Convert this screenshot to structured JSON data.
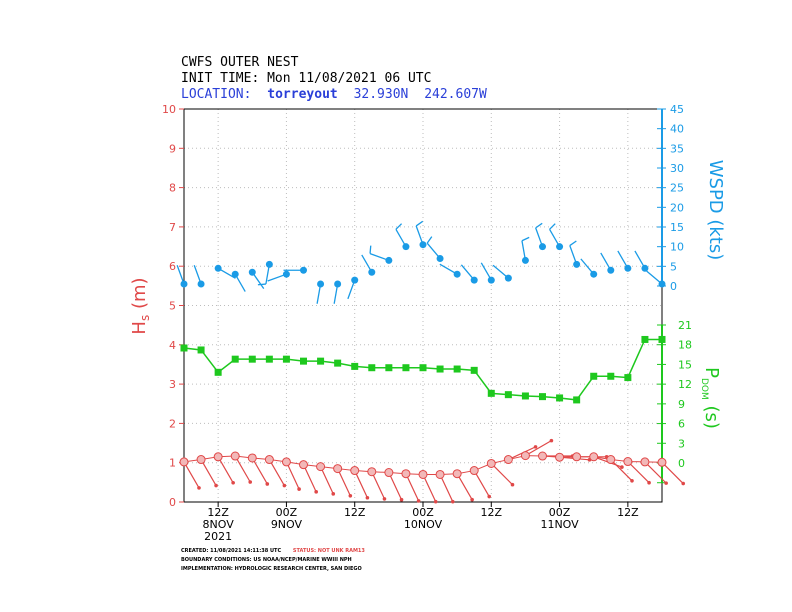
{
  "title_lines": [
    "CWFS OUTER NEST",
    "INIT TIME: Mon 11/08/2021 06 UTC"
  ],
  "location": {
    "label": "LOCATION:",
    "station": "torreyout",
    "lat": "32.930N",
    "lon": "242.607W"
  },
  "footer": {
    "created": "CREATED: 11/08/2021 14:11:38 UTC",
    "status": "STATUS: NOT UNK RAM13",
    "boundary": "BOUNDARY CONDITIONS: US NOAA/NCEP/MARINE WWIII NPH",
    "implementation": "IMPLEMENTATION: HYDROLOGIC RESEARCH CENTER, SAN DIEGO"
  },
  "colors": {
    "hs": "#e04848",
    "wspd": "#1a9be6",
    "pdom": "#1ec81e",
    "loc": "#2a3fd8"
  },
  "chart_data": {
    "type": "line",
    "x_unit": "hours from 2021-11-08 06 UTC",
    "x_range": [
      0,
      84
    ],
    "x_ticks": [
      {
        "x": 6,
        "label": "12Z",
        "date": "8NOV",
        "year": "2021"
      },
      {
        "x": 18,
        "label": "00Z",
        "date": "9NOV",
        "year": ""
      },
      {
        "x": 30,
        "label": "12Z",
        "date": "",
        "year": ""
      },
      {
        "x": 42,
        "label": "00Z",
        "date": "10NOV",
        "year": ""
      },
      {
        "x": 54,
        "label": "12Z",
        "date": "",
        "year": ""
      },
      {
        "x": 66,
        "label": "00Z",
        "date": "11NOV",
        "year": ""
      },
      {
        "x": 78,
        "label": "12Z",
        "date": "",
        "year": ""
      }
    ],
    "hs": {
      "ylabel_main": "H",
      "ylabel_sub": "s",
      "ylabel_unit": " (m)",
      "ylim": [
        0,
        10
      ],
      "ticks": [
        "0",
        "1",
        "2",
        "3",
        "4",
        "5",
        "6",
        "7",
        "8",
        "9",
        "10"
      ],
      "x": [
        0,
        3,
        6,
        9,
        12,
        15,
        18,
        21,
        24,
        27,
        30,
        33,
        36,
        39,
        42,
        45,
        48,
        51,
        54,
        57,
        60,
        63,
        66,
        69,
        72,
        75,
        78,
        81,
        84
      ],
      "values": [
        1.02,
        1.08,
        1.15,
        1.17,
        1.12,
        1.08,
        1.02,
        0.95,
        0.9,
        0.85,
        0.8,
        0.77,
        0.75,
        0.72,
        0.7,
        0.7,
        0.72,
        0.8,
        0.98,
        1.08,
        1.18,
        1.17,
        1.14,
        1.15,
        1.15,
        1.08,
        1.03,
        1.02,
        1.01
      ],
      "dir_deg": [
        210,
        210,
        210,
        210,
        210,
        210,
        205,
        205,
        205,
        205,
        205,
        205,
        205,
        205,
        205,
        205,
        210,
        210,
        225,
        295,
        300,
        270,
        265,
        270,
        250,
        225,
        225,
        225,
        225
      ]
    },
    "wspd": {
      "ylabel": "WSPD (kts)",
      "ylim": [
        0,
        45
      ],
      "ticks": [
        "0",
        "5",
        "10",
        "15",
        "20",
        "25",
        "30",
        "35",
        "40",
        "45"
      ],
      "x": [
        0,
        3,
        6,
        9,
        12,
        15,
        18,
        21,
        24,
        27,
        30,
        33,
        36,
        39,
        42,
        45,
        48,
        51,
        54,
        57,
        60,
        63,
        66,
        69,
        72,
        75,
        78,
        81,
        84
      ],
      "values": [
        0.5,
        0.5,
        4.5,
        3,
        3.5,
        5.5,
        3,
        4,
        0.5,
        0.5,
        1.5,
        3.5,
        6.5,
        10,
        10.5,
        7,
        3,
        1.5,
        1.5,
        2,
        6.5,
        10,
        10,
        5.5,
        3,
        4,
        4.5,
        4.5,
        0.5
      ],
      "dir_deg": [
        340,
        340,
        120,
        150,
        145,
        190,
        250,
        270,
        190,
        190,
        200,
        330,
        290,
        330,
        340,
        320,
        300,
        320,
        330,
        310,
        350,
        340,
        330,
        340,
        320,
        330,
        330,
        330,
        310
      ]
    },
    "pdom": {
      "ylabel_main": "P",
      "ylabel_sub": "DOM",
      "ylabel_unit": " (s)",
      "ylim": [
        -3,
        21
      ],
      "ticks": [
        "0",
        "3",
        "6",
        "9",
        "12",
        "15",
        "18",
        "21"
      ],
      "x": [
        0,
        3,
        6,
        9,
        12,
        15,
        18,
        21,
        24,
        27,
        30,
        33,
        36,
        39,
        42,
        45,
        48,
        51,
        54,
        57,
        60,
        63,
        66,
        69,
        72,
        75,
        78,
        81,
        84
      ],
      "values": [
        17.5,
        17.2,
        13.8,
        15.8,
        15.8,
        15.8,
        15.8,
        15.5,
        15.5,
        15.2,
        14.7,
        14.5,
        14.5,
        14.5,
        14.5,
        14.3,
        14.3,
        14.1,
        10.6,
        10.4,
        10.2,
        10.1,
        9.9,
        9.6,
        13.2,
        13.2,
        13.0,
        18.8,
        18.8
      ]
    }
  }
}
